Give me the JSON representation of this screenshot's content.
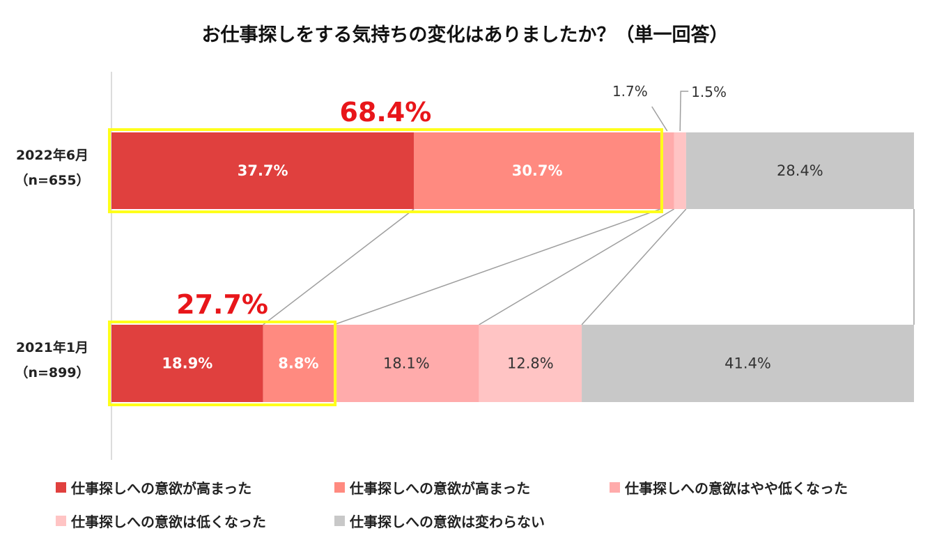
{
  "chart_data": {
    "type": "bar",
    "orientation": "horizontal",
    "stacked": true,
    "title": "お仕事探しをする気持ちの変化はありましたか？（単一回答）",
    "categories": [
      {
        "label_line1": "2022年6月",
        "label_line2": "（n=655）"
      },
      {
        "label_line1": "2021年1月",
        "label_line2": "（n=899）"
      }
    ],
    "series": [
      {
        "name": "仕事探しへの意欲が高まった",
        "color": "#e0403e",
        "label_color": "#ffffff",
        "label_bold": true,
        "values": [
          37.7,
          18.9
        ],
        "labels": [
          "37.7%",
          "18.9%"
        ]
      },
      {
        "name": "仕事探しへの意欲が高まった",
        "color": "#ff8a80",
        "label_color": "#ffffff",
        "label_bold": true,
        "values": [
          30.7,
          8.8
        ],
        "labels": [
          "30.7%",
          "8.8%"
        ]
      },
      {
        "name": "仕事探しへの意欲はやや低くなった",
        "color": "#ffabab",
        "label_color": "#333333",
        "label_bold": false,
        "values": [
          1.7,
          18.1
        ],
        "labels": [
          "1.7%",
          "18.1%"
        ]
      },
      {
        "name": "仕事探しへの意欲は低くなった",
        "color": "#ffc4c4",
        "label_color": "#333333",
        "label_bold": false,
        "values": [
          1.5,
          12.8
        ],
        "labels": [
          "1.5%",
          "12.8%"
        ]
      },
      {
        "name": "仕事探しへの意欲は変わらない",
        "color": "#c8c8c8",
        "label_color": "#333333",
        "label_bold": false,
        "values": [
          28.4,
          41.4
        ],
        "labels": [
          "28.4%",
          "41.4%"
        ]
      }
    ],
    "highlight_totals": [
      "68.4%",
      "27.7%"
    ],
    "highlight_color": "#ffff1a",
    "total_label_color": "#e8161a",
    "xlim": [
      0,
      100
    ],
    "connector_lines": true,
    "legend_position": "bottom"
  }
}
